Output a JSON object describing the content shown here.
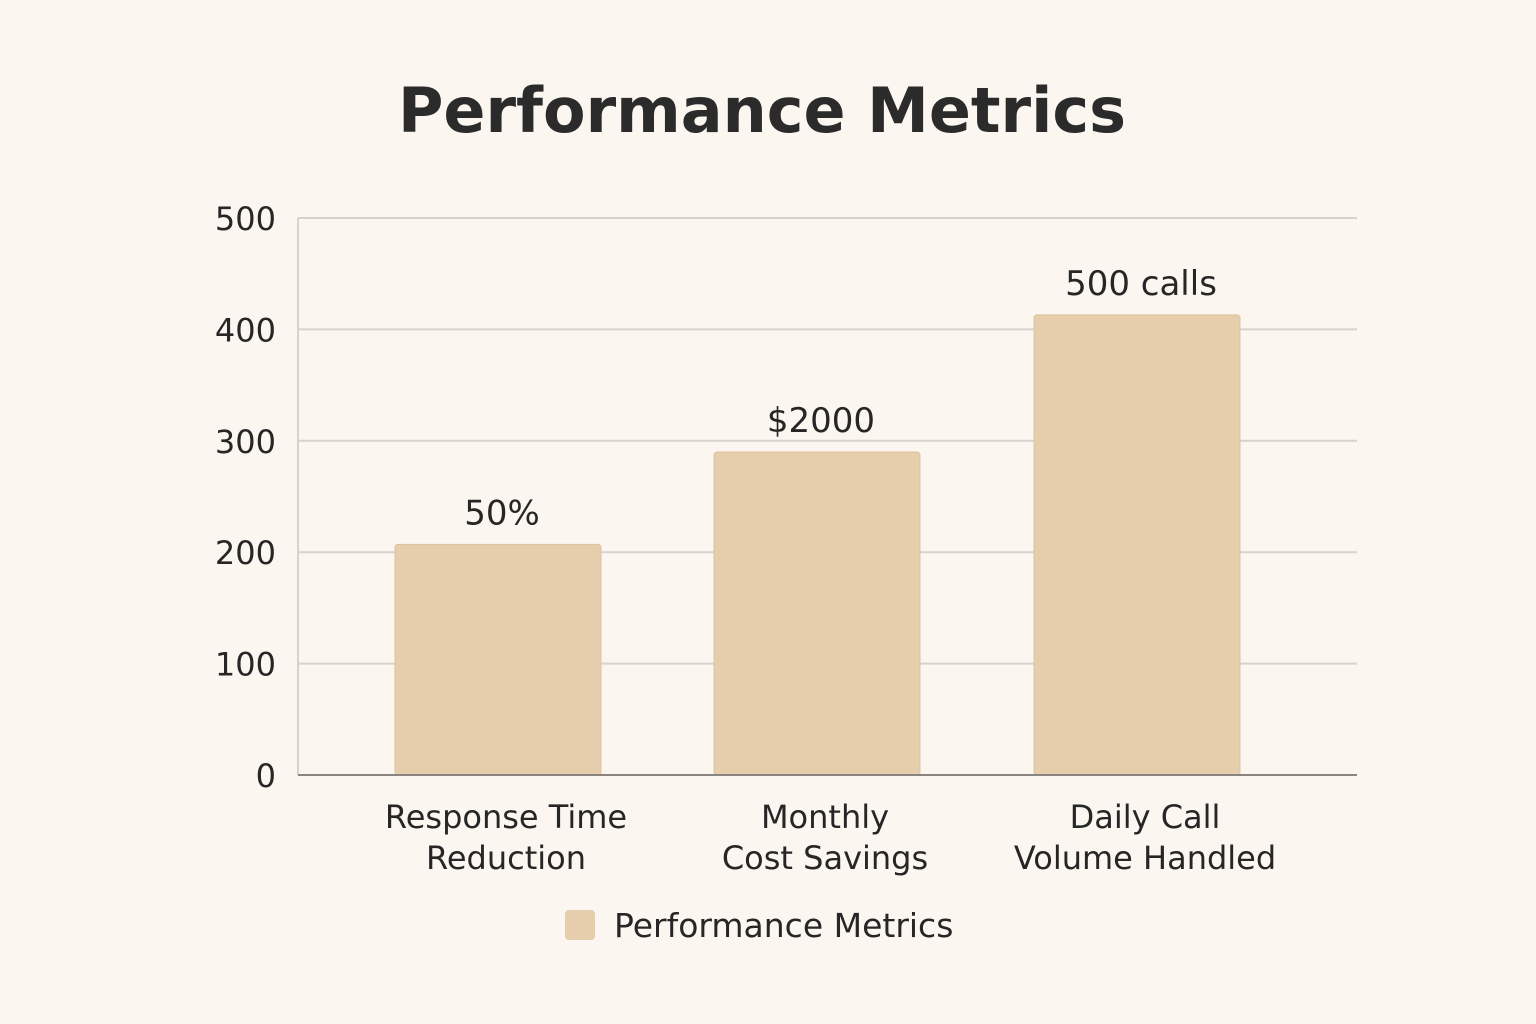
{
  "chart_data": {
    "type": "bar",
    "title": "Performance Metrics",
    "categories": [
      [
        "Response Time",
        "Reduction"
      ],
      [
        "Monthly",
        "Cost Savings"
      ],
      [
        "Daily Call",
        "Volume Handled"
      ]
    ],
    "series": [
      {
        "name": "Performance Metrics",
        "values": [
          207,
          290,
          413
        ],
        "data_labels": [
          "50%",
          "$2000",
          "500 calls"
        ],
        "color": "#e6cdab"
      }
    ],
    "ylim": [
      0,
      500
    ],
    "yticks": [
      0,
      100,
      200,
      300,
      400,
      500
    ],
    "grid": true,
    "legend": "bottom-center",
    "colors": {
      "background": "#fcf6f0",
      "bar": "#e6cdab",
      "grid": "#d6d2cd",
      "axis": "#8a8580",
      "text": "#262626"
    }
  }
}
